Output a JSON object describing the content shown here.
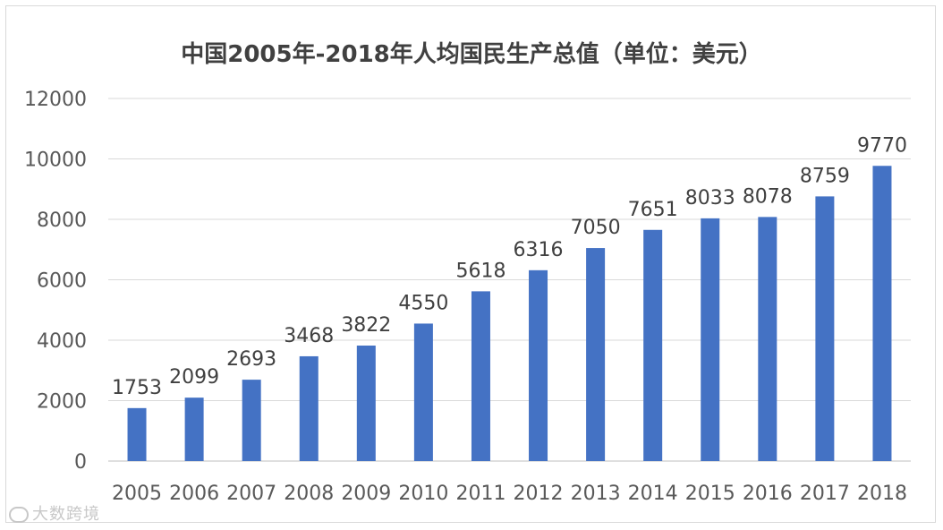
{
  "chart_data": {
    "type": "bar",
    "title": "中国2005年-2018年人均国民生产总值（单位：美元）",
    "categories": [
      "2005",
      "2006",
      "2007",
      "2008",
      "2009",
      "2010",
      "2011",
      "2012",
      "2013",
      "2014",
      "2015",
      "2016",
      "2017",
      "2018"
    ],
    "values": [
      1753,
      2099,
      2693,
      3468,
      3822,
      4550,
      5618,
      6316,
      7050,
      7651,
      8033,
      8078,
      8759,
      9770
    ],
    "ylim": [
      0,
      12000
    ],
    "yticks": [
      "0",
      "2000",
      "4000",
      "6000",
      "8000",
      "10000",
      "12000"
    ],
    "xlabel": "",
    "ylabel": "",
    "grid": true,
    "legend": "none",
    "bar_color": "#4472c4"
  },
  "watermark": {
    "text": "大数跨境",
    "icon": "brand-logo-icon"
  }
}
